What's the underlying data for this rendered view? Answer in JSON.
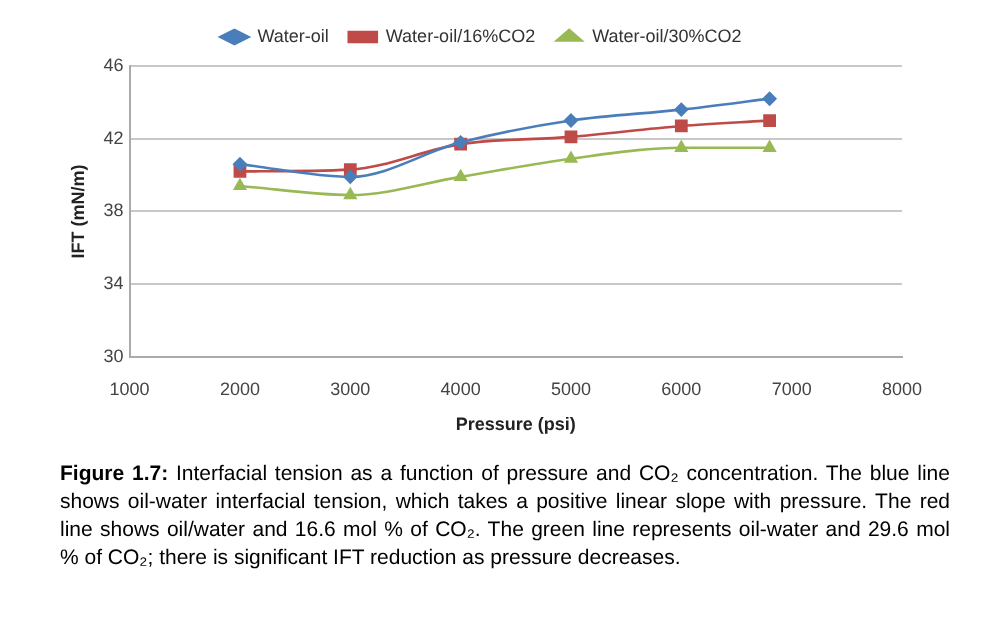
{
  "chart_data": {
    "type": "line",
    "xlabel": "Pressure (psi)",
    "ylabel": "IFT (mN/m)",
    "x": [
      2000,
      3000,
      4000,
      5000,
      6000,
      6800
    ],
    "series": [
      {
        "name": "Water-oil",
        "color": "#4a7ebb",
        "marker": "diamond",
        "values": [
          40.6,
          39.9,
          41.8,
          43.0,
          43.6,
          44.2
        ]
      },
      {
        "name": "Water-oil/16%CO2",
        "color": "#be4b48",
        "marker": "square",
        "values": [
          40.2,
          40.3,
          41.7,
          42.1,
          42.7,
          43.0
        ]
      },
      {
        "name": "Water-oil/30%CO2",
        "color": "#98b954",
        "marker": "triangle",
        "values": [
          39.4,
          38.9,
          39.9,
          40.9,
          41.5,
          41.5
        ]
      }
    ],
    "xlim": [
      1000,
      8000
    ],
    "xticks": [
      1000,
      2000,
      3000,
      4000,
      5000,
      6000,
      7000,
      8000
    ],
    "ylim": [
      30,
      46
    ],
    "yticks": [
      30,
      34,
      38,
      42,
      46
    ],
    "grid": "y",
    "legend": "top",
    "annotations": [
      "Figure 1.7: Interfacial tension as a function of pressure and CO₂ concentration. The blue line shows oil-water interfacial tension, which takes a positive linear slope with pressure. The red line shows oil/water and 16.6 mol % of CO₂. The green line represents oil-water and 29.6 mol % of CO₂; there is significant IFT reduction as pressure decreases."
    ]
  }
}
